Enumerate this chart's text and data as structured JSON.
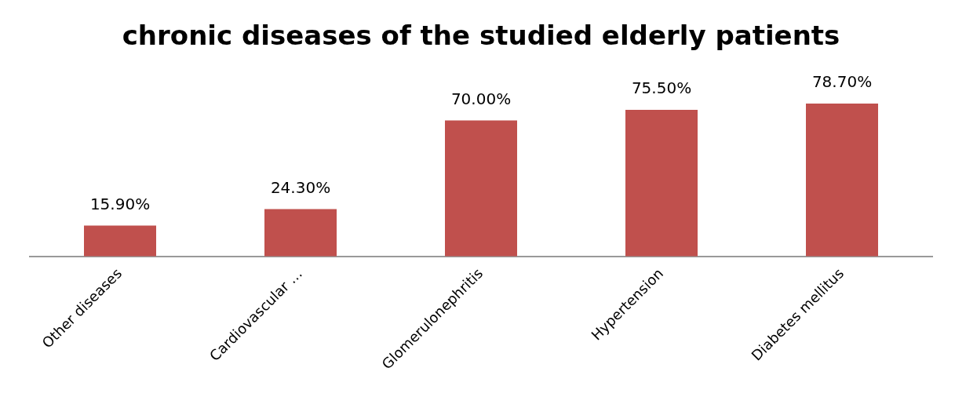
{
  "chart_data": {
    "type": "bar",
    "title": "chronic diseases of the studied elderly patients",
    "categories": [
      "Other diseases",
      "Cardiovascular …",
      "Glomerulonephritis",
      "Hypertension",
      "Diabetes mellitus"
    ],
    "values": [
      15.9,
      24.3,
      70.0,
      75.5,
      78.7
    ],
    "value_labels": [
      "15.90%",
      "24.30%",
      "70.00%",
      "75.50%",
      "78.70%"
    ],
    "color": "#c0504d",
    "grid": false,
    "legend": false
  }
}
